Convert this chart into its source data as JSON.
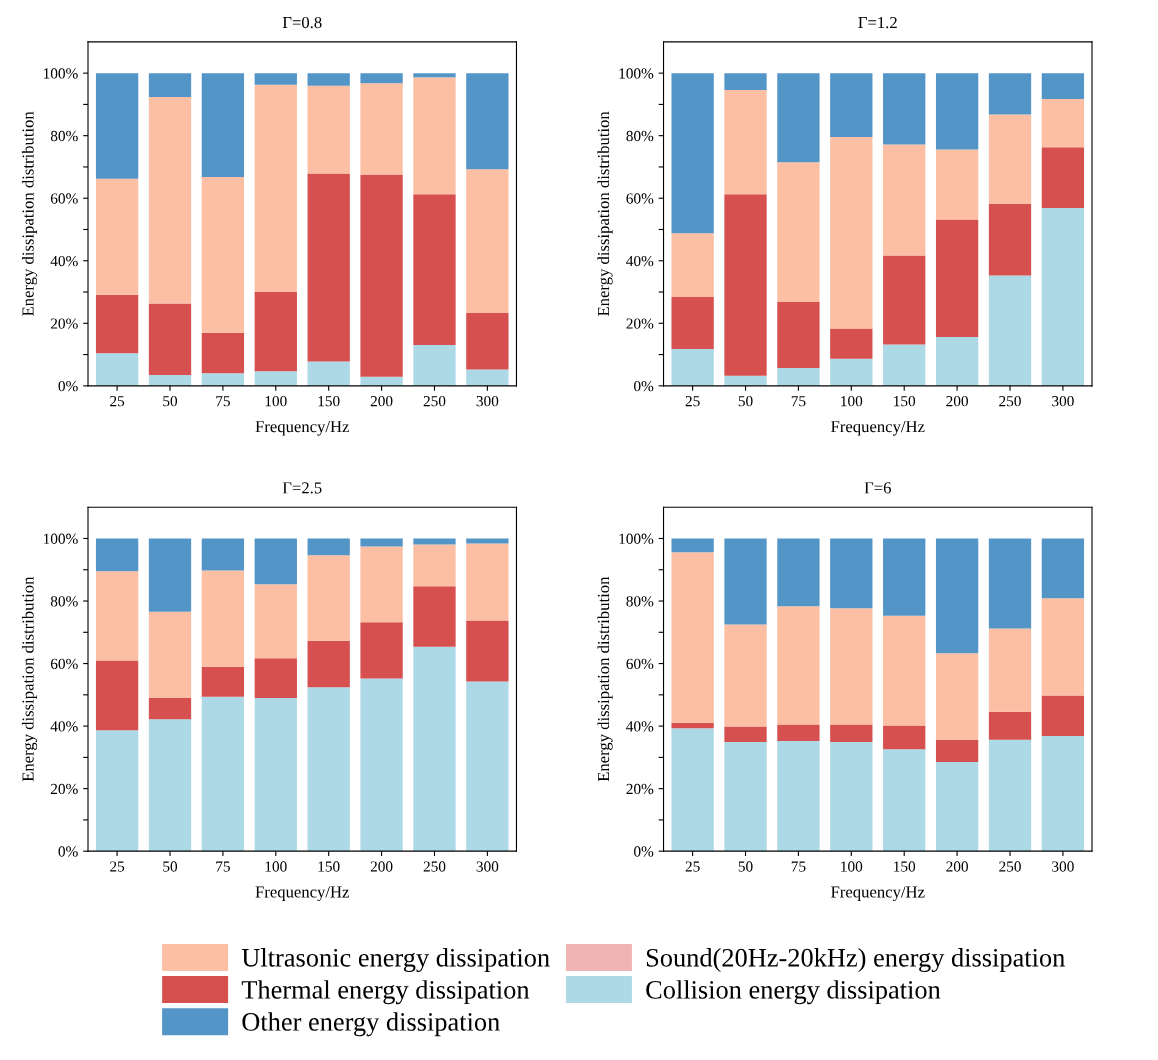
{
  "chart_data": [
    {
      "type": "bar",
      "stacked": true,
      "title": "Γ=0.8",
      "xlabel": "Frequency/Hz",
      "ylabel": "Energy dissipation distribution",
      "legend": "bottom",
      "categories": [
        "25",
        "50",
        "75",
        "100",
        "150",
        "200",
        "250",
        "300"
      ],
      "series": [
        {
          "name": "Collision energy dissipation",
          "color": "#add8e6",
          "values": [
            10.4,
            3.5,
            4.0,
            4.7,
            7.8,
            2.9,
            13.1,
            5.2
          ]
        },
        {
          "name": "Thermal energy dissipation",
          "color": "#d65050",
          "values": [
            18.7,
            22.8,
            13.0,
            25.3,
            60.1,
            64.7,
            48.2,
            18.1
          ]
        },
        {
          "name": "Sound(20Hz-20kHz) energy dissipation",
          "color": "#f0b4b4",
          "values": [
            0,
            0,
            0,
            0,
            0,
            0,
            0,
            0
          ]
        },
        {
          "name": "Ultrasonic energy dissipation",
          "color": "#fcbfa3",
          "values": [
            37.1,
            66.1,
            49.8,
            66.3,
            28.1,
            29.2,
            37.4,
            46.0
          ]
        },
        {
          "name": "Other energy dissipation",
          "color": "#5495c8",
          "values": [
            33.8,
            7.6,
            33.2,
            3.7,
            4.0,
            3.2,
            1.3,
            30.7
          ]
        }
      ],
      "ylim": [
        0,
        110
      ],
      "yticks": [
        {
          "value": 0,
          "label": "0%"
        },
        {
          "value": 10,
          "label": null
        },
        {
          "value": 20,
          "label": "20%"
        },
        {
          "value": 30,
          "label": null
        },
        {
          "value": 40,
          "label": "40%"
        },
        {
          "value": 50,
          "label": null
        },
        {
          "value": 60,
          "label": "60%"
        },
        {
          "value": 70,
          "label": null
        },
        {
          "value": 80,
          "label": "80%"
        },
        {
          "value": 90,
          "label": null
        },
        {
          "value": 100,
          "label": "100%"
        }
      ]
    },
    {
      "type": "bar",
      "stacked": true,
      "title": "Γ=1.2",
      "xlabel": "Frequency/Hz",
      "ylabel": "Energy dissipation distribution",
      "categories": [
        "25",
        "50",
        "75",
        "100",
        "150",
        "200",
        "250",
        "300"
      ],
      "series": [
        {
          "color": "#add8e6",
          "values": [
            11.8,
            3.2,
            5.7,
            8.7,
            13.2,
            15.6,
            35.3,
            56.9
          ]
        },
        {
          "color": "#d65050",
          "values": [
            16.6,
            58.1,
            21.1,
            9.6,
            28.5,
            37.6,
            22.9,
            19.4
          ]
        },
        {
          "color": "#f0b4b4",
          "values": [
            0,
            0,
            0,
            0,
            0,
            0,
            0,
            0
          ]
        },
        {
          "color": "#fcbfa3",
          "values": [
            20.4,
            33.3,
            44.7,
            61.3,
            35.5,
            22.4,
            28.6,
            15.4
          ]
        },
        {
          "color": "#5495c8",
          "values": [
            51.2,
            5.4,
            28.5,
            20.4,
            22.8,
            24.4,
            13.2,
            8.3
          ]
        }
      ],
      "ylim": [
        0,
        110
      ],
      "yticks": [
        {
          "value": 0,
          "label": "0%"
        },
        {
          "value": 10,
          "label": null
        },
        {
          "value": 20,
          "label": "20%"
        },
        {
          "value": 30,
          "label": null
        },
        {
          "value": 40,
          "label": "40%"
        },
        {
          "value": 50,
          "label": null
        },
        {
          "value": 60,
          "label": "60%"
        },
        {
          "value": 70,
          "label": null
        },
        {
          "value": 80,
          "label": "80%"
        },
        {
          "value": 90,
          "label": null
        },
        {
          "value": 100,
          "label": "100%"
        }
      ]
    },
    {
      "type": "bar",
      "stacked": true,
      "title": "Γ=2.5",
      "xlabel": "Frequency/Hz",
      "ylabel": "Energy dissipation distribution",
      "categories": [
        "25",
        "50",
        "75",
        "100",
        "150",
        "200",
        "250",
        "300"
      ],
      "series": [
        {
          "color": "#add8e6",
          "values": [
            38.7,
            42.2,
            49.4,
            49.0,
            52.4,
            55.2,
            65.4,
            54.3
          ]
        },
        {
          "color": "#d65050",
          "values": [
            22.3,
            6.8,
            9.6,
            12.7,
            14.9,
            18.0,
            19.3,
            19.5
          ]
        },
        {
          "color": "#f0b4b4",
          "values": [
            0,
            0,
            0,
            0,
            0,
            0,
            0,
            0
          ]
        },
        {
          "color": "#fcbfa3",
          "values": [
            28.5,
            27.6,
            30.8,
            23.7,
            27.3,
            24.2,
            13.4,
            24.6
          ]
        },
        {
          "color": "#5495c8",
          "values": [
            10.5,
            23.4,
            10.2,
            14.6,
            5.4,
            2.6,
            1.9,
            1.6
          ]
        }
      ],
      "ylim": [
        0,
        110
      ],
      "yticks": [
        {
          "value": 0,
          "label": "0%"
        },
        {
          "value": 10,
          "label": null
        },
        {
          "value": 20,
          "label": "20%"
        },
        {
          "value": 30,
          "label": null
        },
        {
          "value": 40,
          "label": "40%"
        },
        {
          "value": 50,
          "label": null
        },
        {
          "value": 60,
          "label": "60%"
        },
        {
          "value": 70,
          "label": null
        },
        {
          "value": 80,
          "label": "80%"
        },
        {
          "value": 90,
          "label": null
        },
        {
          "value": 100,
          "label": "100%"
        }
      ]
    },
    {
      "type": "bar",
      "stacked": true,
      "title": "Γ=6",
      "xlabel": "Frequency/Hz",
      "ylabel": "Energy dissipation distribution",
      "categories": [
        "25",
        "50",
        "75",
        "100",
        "150",
        "200",
        "250",
        "300"
      ],
      "series": [
        {
          "color": "#add8e6",
          "values": [
            39.3,
            34.9,
            35.2,
            34.9,
            32.6,
            28.5,
            35.6,
            36.8
          ]
        },
        {
          "color": "#d65050",
          "values": [
            1.8,
            5.0,
            5.3,
            5.6,
            7.6,
            7.1,
            9.0,
            13.0
          ]
        },
        {
          "color": "#f0b4b4",
          "values": [
            0,
            0,
            0,
            0,
            0,
            0,
            0,
            0
          ]
        },
        {
          "color": "#fcbfa3",
          "values": [
            54.5,
            32.6,
            37.8,
            37.2,
            35.1,
            27.7,
            26.6,
            31.1
          ]
        },
        {
          "color": "#5495c8",
          "values": [
            4.4,
            27.5,
            21.7,
            22.3,
            24.7,
            36.7,
            28.8,
            19.1
          ]
        }
      ],
      "ylim": [
        0,
        110
      ],
      "yticks": [
        {
          "value": 0,
          "label": "0%"
        },
        {
          "value": 10,
          "label": null
        },
        {
          "value": 20,
          "label": "20%"
        },
        {
          "value": 30,
          "label": null
        },
        {
          "value": 40,
          "label": "40%"
        },
        {
          "value": 50,
          "label": null
        },
        {
          "value": 60,
          "label": "60%"
        },
        {
          "value": 70,
          "label": null
        },
        {
          "value": 80,
          "label": "80%"
        },
        {
          "value": 90,
          "label": null
        },
        {
          "value": 100,
          "label": "100%"
        }
      ]
    }
  ]
}
